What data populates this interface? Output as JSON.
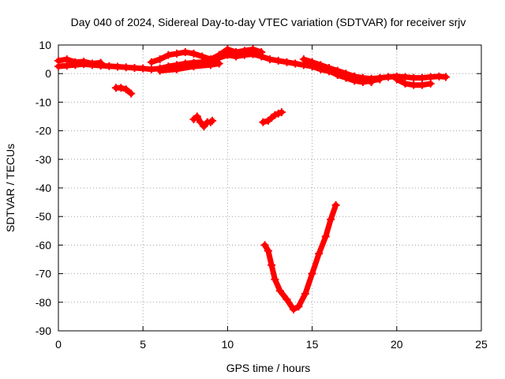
{
  "chart_data": {
    "type": "scatter",
    "title": "Day 040 of 2024, Sidereal Day-to-day VTEC variation (SDTVAR) for receiver srjv",
    "xlabel": "GPS time / hours",
    "ylabel": "SDTVAR / TECUs",
    "xlim": [
      0,
      25
    ],
    "ylim": [
      -90,
      10
    ],
    "xticks": [
      "0",
      "5",
      "10",
      "15",
      "20",
      "25"
    ],
    "yticks": [
      "10",
      "0",
      "-10",
      "-20",
      "-30",
      "-40",
      "-50",
      "-60",
      "-70",
      "-80",
      "-90"
    ],
    "grid": true,
    "series_color": "#ff0000",
    "segments": [
      [
        [
          0.0,
          2.5
        ],
        [
          0.5,
          2.8
        ],
        [
          1.0,
          3.0
        ],
        [
          1.5,
          3.3
        ],
        [
          2.0,
          3.0
        ],
        [
          2.5,
          2.8
        ],
        [
          3.0,
          2.6
        ],
        [
          3.5,
          2.4
        ],
        [
          4.0,
          2.2
        ],
        [
          4.5,
          2.0
        ],
        [
          5.0,
          1.8
        ],
        [
          5.5,
          1.5
        ],
        [
          6.0,
          1.8
        ],
        [
          6.5,
          2.5
        ],
        [
          7.0,
          3.0
        ],
        [
          7.5,
          3.5
        ],
        [
          8.0,
          3.8
        ],
        [
          8.5,
          4.0
        ],
        [
          9.0,
          4.5
        ],
        [
          9.5,
          5.5
        ],
        [
          10.0,
          6.5
        ],
        [
          10.5,
          6.0
        ],
        [
          11.0,
          6.5
        ],
        [
          11.5,
          6.8
        ],
        [
          12.0,
          6.0
        ],
        [
          12.5,
          5.0
        ],
        [
          13.0,
          4.5
        ],
        [
          13.5,
          4.0
        ],
        [
          14.0,
          3.5
        ],
        [
          14.5,
          3.0
        ],
        [
          15.0,
          2.5
        ],
        [
          15.5,
          1.5
        ],
        [
          16.0,
          0.8
        ],
        [
          16.5,
          0.2
        ],
        [
          17.0,
          -0.5
        ],
        [
          17.5,
          -1.0
        ],
        [
          18.0,
          -1.5
        ],
        [
          18.5,
          -1.8
        ],
        [
          19.0,
          -1.5
        ],
        [
          19.5,
          -1.2
        ],
        [
          20.0,
          -1.0
        ],
        [
          20.5,
          -1.2
        ],
        [
          21.0,
          -1.5
        ],
        [
          21.5,
          -1.5
        ],
        [
          22.0,
          -1.2
        ],
        [
          22.5,
          -1.0
        ],
        [
          22.9,
          -1.2
        ]
      ],
      [
        [
          0.0,
          4.5
        ],
        [
          0.5,
          5.0
        ],
        [
          1.0,
          4.0
        ],
        [
          1.5,
          4.2
        ],
        [
          2.0,
          3.5
        ],
        [
          2.5,
          3.8
        ]
      ],
      [
        [
          5.5,
          4.0
        ],
        [
          6.0,
          5.0
        ],
        [
          6.5,
          6.5
        ],
        [
          7.0,
          7.0
        ],
        [
          7.5,
          7.5
        ],
        [
          8.0,
          7.0
        ],
        [
          8.5,
          6.0
        ],
        [
          9.0,
          5.0
        ],
        [
          9.5,
          6.5
        ],
        [
          10.0,
          8.5
        ],
        [
          10.5,
          7.5
        ],
        [
          11.0,
          8.0
        ],
        [
          11.5,
          8.5
        ],
        [
          12.0,
          7.5
        ]
      ],
      [
        [
          14.5,
          5.0
        ],
        [
          15.0,
          4.0
        ],
        [
          15.5,
          3.0
        ],
        [
          16.0,
          2.0
        ],
        [
          16.5,
          1.0
        ],
        [
          17.0,
          0.0
        ],
        [
          17.5,
          -1.0
        ],
        [
          18.0,
          -2.0
        ],
        [
          18.5,
          -3.0
        ]
      ],
      [
        [
          15.5,
          2.0
        ],
        [
          16.0,
          1.0
        ],
        [
          16.5,
          -0.5
        ],
        [
          17.0,
          -1.5
        ],
        [
          17.5,
          -2.5
        ],
        [
          18.0,
          -3.0
        ],
        [
          18.5,
          -2.5
        ],
        [
          19.0,
          -2.0
        ]
      ],
      [
        [
          20.0,
          -2.0
        ],
        [
          20.5,
          -3.5
        ],
        [
          21.0,
          -4.0
        ],
        [
          21.5,
          -4.0
        ],
        [
          22.0,
          -3.5
        ]
      ],
      [
        [
          6.0,
          1.0
        ],
        [
          7.0,
          1.5
        ],
        [
          8.0,
          2.5
        ],
        [
          9.0,
          3.0
        ],
        [
          9.5,
          3.5
        ]
      ],
      [
        [
          3.4,
          -5.0
        ],
        [
          3.7,
          -5.0
        ],
        [
          4.0,
          -5.5
        ],
        [
          4.3,
          -7.0
        ]
      ],
      [
        [
          8.0,
          -16.0
        ],
        [
          8.2,
          -15.0
        ],
        [
          8.4,
          -17.0
        ],
        [
          8.6,
          -18.5
        ],
        [
          8.8,
          -17.0
        ],
        [
          9.0,
          -17.0
        ],
        [
          9.1,
          -16.5
        ]
      ],
      [
        [
          12.1,
          -17.0
        ],
        [
          12.4,
          -16.5
        ],
        [
          12.6,
          -15.5
        ],
        [
          12.8,
          -14.5
        ],
        [
          13.0,
          -14.0
        ],
        [
          13.2,
          -13.5
        ]
      ],
      [
        [
          12.2,
          -60.0
        ],
        [
          12.4,
          -62.0
        ],
        [
          12.6,
          -67.0
        ],
        [
          12.8,
          -72.0
        ],
        [
          13.1,
          -76.0
        ],
        [
          13.5,
          -79.0
        ],
        [
          13.9,
          -82.5
        ],
        [
          14.2,
          -81.5
        ],
        [
          14.6,
          -77.0
        ],
        [
          15.0,
          -70.0
        ],
        [
          15.4,
          -63.0
        ],
        [
          15.8,
          -57.0
        ],
        [
          16.1,
          -51.0
        ],
        [
          16.4,
          -46.0
        ]
      ]
    ]
  }
}
